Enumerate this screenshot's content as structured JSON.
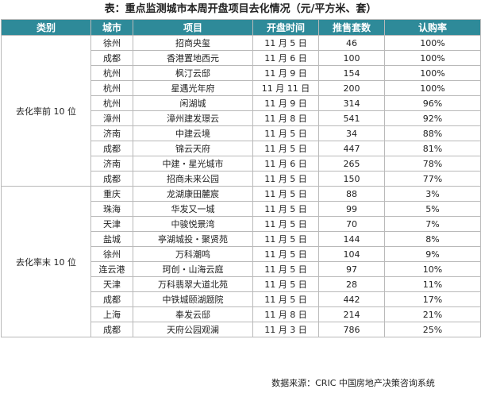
{
  "title": "表：重点监测城市本周开盘项目去化情况（元/平方米、套）",
  "headers": {
    "category": "类别",
    "city": "城市",
    "project": "项目",
    "open_date": "开盘时间",
    "units": "推售套数",
    "rate": "认购率"
  },
  "groups": [
    {
      "label": "去化率前 10 位",
      "rows": [
        {
          "city": "徐州",
          "project": "招商央玺",
          "date": "11 月 5 日",
          "units": "46",
          "rate": "100%"
        },
        {
          "city": "成都",
          "project": "香港置地西元",
          "date": "11 月 6 日",
          "units": "100",
          "rate": "100%"
        },
        {
          "city": "杭州",
          "project": "枫汀云邸",
          "date": "11 月 9 日",
          "units": "154",
          "rate": "100%"
        },
        {
          "city": "杭州",
          "project": "星遇光年府",
          "date": "11 月 11 日",
          "units": "200",
          "rate": "100%"
        },
        {
          "city": "杭州",
          "project": "闲湖城",
          "date": "11 月 9 日",
          "units": "314",
          "rate": "96%"
        },
        {
          "city": "漳州",
          "project": "漳州建发璟云",
          "date": "11 月 8 日",
          "units": "541",
          "rate": "92%"
        },
        {
          "city": "济南",
          "project": "中建云境",
          "date": "11 月 5 日",
          "units": "34",
          "rate": "88%"
        },
        {
          "city": "成都",
          "project": "锦云天府",
          "date": "11 月 5 日",
          "units": "447",
          "rate": "81%"
        },
        {
          "city": "济南",
          "project": "中建・星光城市",
          "date": "11 月 6 日",
          "units": "265",
          "rate": "78%"
        },
        {
          "city": "成都",
          "project": "招商未来公园",
          "date": "11 月 5 日",
          "units": "150",
          "rate": "77%"
        }
      ]
    },
    {
      "label": "去化率末 10 位",
      "rows": [
        {
          "city": "重庆",
          "project": "龙湖康田麓宸",
          "date": "11 月 5 日",
          "units": "88",
          "rate": "3%"
        },
        {
          "city": "珠海",
          "project": "华发又一城",
          "date": "11 月 5 日",
          "units": "99",
          "rate": "5%"
        },
        {
          "city": "天津",
          "project": "中骏悦景湾",
          "date": "11 月 5 日",
          "units": "70",
          "rate": "7%"
        },
        {
          "city": "盐城",
          "project": "亭湖城投・聚贤苑",
          "date": "11 月 5 日",
          "units": "144",
          "rate": "8%"
        },
        {
          "city": "徐州",
          "project": "万科潮鸣",
          "date": "11 月 5 日",
          "units": "104",
          "rate": "9%"
        },
        {
          "city": "连云港",
          "project": "珂创・山海云庭",
          "date": "11 月 5 日",
          "units": "97",
          "rate": "10%"
        },
        {
          "city": "天津",
          "project": "万科翡翠大道北苑",
          "date": "11 月 5 日",
          "units": "28",
          "rate": "11%"
        },
        {
          "city": "成都",
          "project": "中铁城颐湖题院",
          "date": "11 月 5 日",
          "units": "442",
          "rate": "17%"
        },
        {
          "city": "上海",
          "project": "奉发云邸",
          "date": "11 月 8 日",
          "units": "214",
          "rate": "21%"
        },
        {
          "city": "成都",
          "project": "天府公园观澜",
          "date": "11 月 3 日",
          "units": "786",
          "rate": "25%"
        }
      ]
    }
  ],
  "source": "数据来源：CRIC 中国房地产决策咨询系统"
}
